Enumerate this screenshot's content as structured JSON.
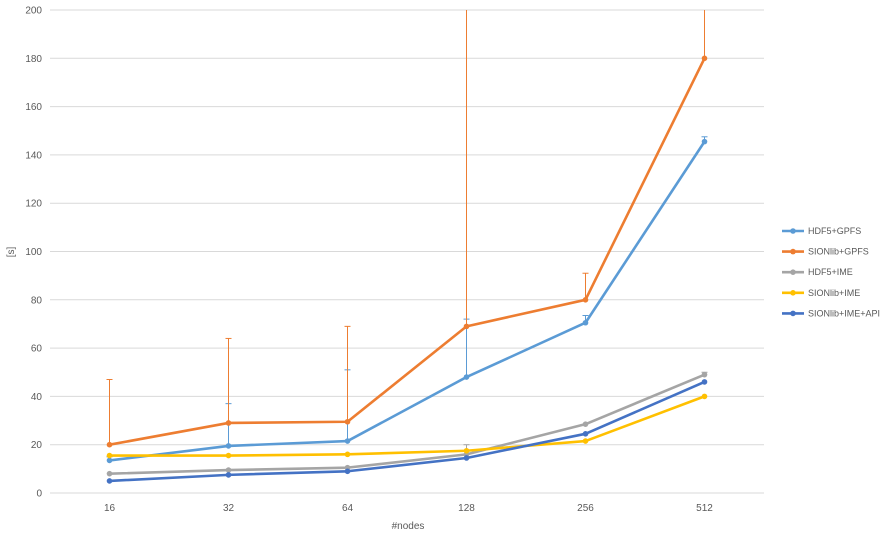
{
  "chart_data": {
    "type": "line",
    "title": "",
    "xlabel": "#nodes",
    "ylabel": "[s]",
    "categories": [
      "16",
      "32",
      "64",
      "128",
      "256",
      "512"
    ],
    "ylim": [
      0,
      200
    ],
    "yticks": [
      0,
      20,
      40,
      60,
      80,
      100,
      120,
      140,
      160,
      180,
      200
    ],
    "grid": true,
    "legend_position": "right",
    "series": [
      {
        "name": "HDF5+GPFS",
        "color": "#5b9bd5",
        "values": [
          13.5,
          19.5,
          21.5,
          48,
          70.5,
          145.5
        ],
        "error_upper": [
          15,
          37,
          51,
          72,
          73.5,
          147.5
        ]
      },
      {
        "name": "SIONlib+GPFS",
        "color": "#ed7d31",
        "values": [
          20,
          29,
          29.5,
          69,
          80,
          180
        ],
        "error_upper": [
          47,
          64,
          69,
          200,
          91,
          200
        ]
      },
      {
        "name": "HDF5+IME",
        "color": "#a5a5a5",
        "values": [
          8,
          9.5,
          10.5,
          16,
          28.5,
          49
        ],
        "error_upper": [
          null,
          null,
          null,
          20,
          null,
          50
        ]
      },
      {
        "name": "SIONlib+IME",
        "color": "#ffc000",
        "values": [
          15.5,
          15.5,
          16,
          17.5,
          21.5,
          40
        ],
        "error_upper": [
          null,
          null,
          null,
          null,
          null,
          null
        ]
      },
      {
        "name": "SIONlib+IME+API",
        "color": "#4472c4",
        "values": [
          5,
          7.5,
          9,
          14.5,
          24.5,
          46
        ],
        "error_upper": [
          null,
          null,
          null,
          null,
          null,
          null
        ]
      }
    ]
  }
}
